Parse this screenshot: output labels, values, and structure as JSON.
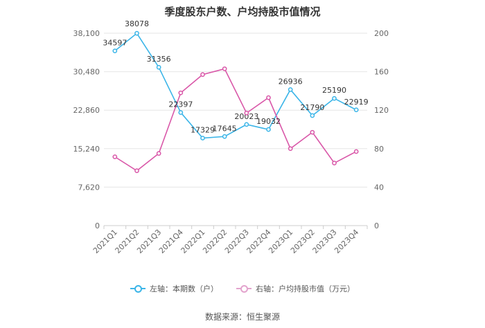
{
  "chart_data": {
    "type": "line",
    "title": "季度股东户数、户均持股市值情况",
    "categories": [
      "2021Q1",
      "2021Q2",
      "2021Q3",
      "2021Q4",
      "2022Q1",
      "2022Q2",
      "2022Q3",
      "2022Q4",
      "2023Q1",
      "2023Q2",
      "2023Q3",
      "2023Q4"
    ],
    "left_axis": {
      "ticks": [
        "0",
        "7,620",
        "15,240",
        "22,860",
        "30,480",
        "38,100"
      ],
      "ylim": [
        0,
        38100
      ]
    },
    "right_axis": {
      "ticks": [
        "0",
        "40",
        "80",
        "120",
        "160",
        "200"
      ],
      "ylim": [
        0,
        200
      ]
    },
    "series": [
      {
        "name": "左轴：本期数（户）",
        "axis": "left",
        "color": "#3bb5e8",
        "values": [
          34597,
          38078,
          31356,
          22397,
          17329,
          17645,
          20023,
          19032,
          26936,
          21790,
          25190,
          22919
        ],
        "labels": [
          "34597",
          "38078",
          "31356",
          "22397",
          "17329",
          "17645",
          "20023",
          "19032",
          "26936",
          "21790",
          "25190",
          "22919"
        ]
      },
      {
        "name": "右轴：户均持股市值（万元）",
        "axis": "right",
        "color": "#d957a8",
        "values": [
          71.5,
          57,
          75,
          138,
          157,
          163,
          117,
          133,
          80,
          97,
          65,
          77
        ]
      }
    ],
    "grid": true,
    "legend_position": "bottom"
  },
  "legend": {
    "left_label": "左轴：本期数（户）",
    "right_label": "右轴：户均持股市值（万元）"
  },
  "source_note": "数据来源：恒生聚源"
}
